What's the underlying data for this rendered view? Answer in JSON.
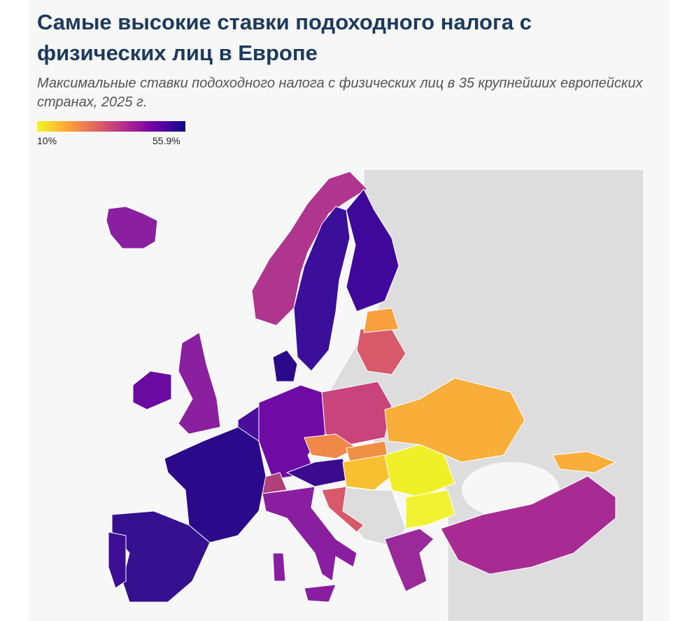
{
  "header": {
    "title": "Самые высокие ставки подоходного налога с физических лиц в Европе",
    "subtitle": "Максимальные ставки подоходного налога с физических лиц в 35 крупнейших европейских странах, 2025 г."
  },
  "legend": {
    "min": {
      "value": 10,
      "label": "10%",
      "color": "#f0f921"
    },
    "max": {
      "value": 55.9,
      "label": "55.9%",
      "color": "#0d0887"
    },
    "stops": [
      "#f0f921",
      "#fca636",
      "#e16462",
      "#b12a90",
      "#6a00a8",
      "#0d0887"
    ]
  }
}
